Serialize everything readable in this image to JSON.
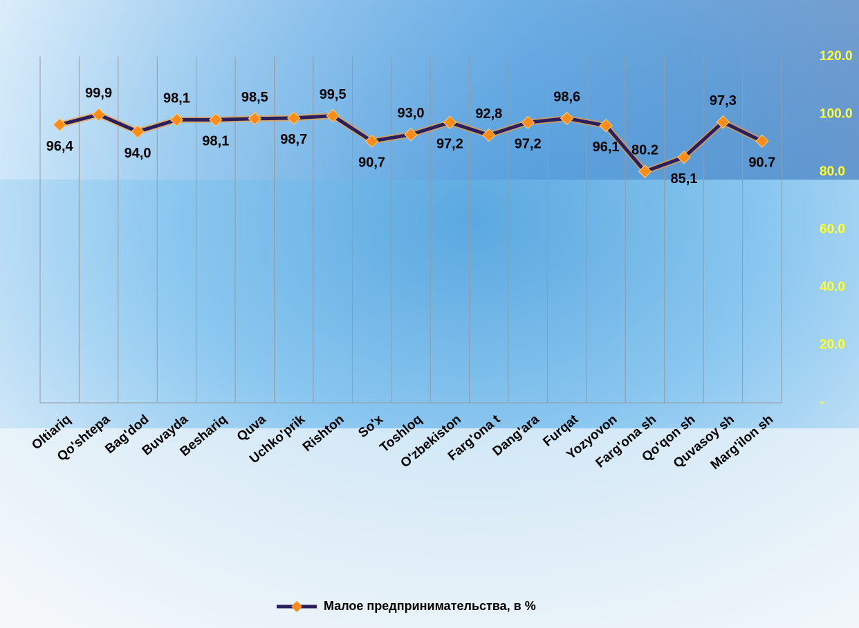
{
  "chart_data": {
    "type": "line",
    "categories": [
      "Oltiariq",
      "Qo'shtepa",
      "Bag'dod",
      "Buvayda",
      "Beshariq",
      "Quva",
      "Uchko'prik",
      "Rishton",
      "So'x",
      "Toshloq",
      "O'zbekiston",
      "Farg'ona t",
      "Dang'ara",
      "Furqat",
      "Yozyovon",
      "Farg'ona sh",
      "Qo'qon sh",
      "Quvasoy sh",
      "Marg'ilon sh"
    ],
    "series": [
      {
        "name": "Малое предпринимательства, в %",
        "color": "#2a1f5c",
        "values": [
          96.4,
          99.9,
          94.0,
          98.1,
          98.1,
          98.5,
          98.7,
          99.5,
          90.7,
          93.0,
          97.2,
          92.8,
          97.2,
          98.6,
          96.1,
          80.2,
          85.1,
          97.3,
          90.7
        ],
        "value_labels": [
          "96,4",
          "99,9",
          "94,0",
          "98,1",
          "98,1",
          "98,5",
          "98,7",
          "99,5",
          "90,7",
          "93,0",
          "97,2",
          "92,8",
          "97,2",
          "98,6",
          "96,1",
          "80.2",
          "85,1",
          "97,3",
          "90.7"
        ]
      }
    ],
    "ylim": [
      0,
      120
    ],
    "yticks": [
      {
        "value": 0,
        "label": "-"
      },
      {
        "value": 20,
        "label": "20.0"
      },
      {
        "value": 40,
        "label": "40.0"
      },
      {
        "value": 60,
        "label": "60.0"
      },
      {
        "value": 80,
        "label": "80.0"
      },
      {
        "value": 100,
        "label": "100.0"
      },
      {
        "value": 120,
        "label": "120.0"
      }
    ],
    "y_axis_side": "right",
    "marker_color": "#ff8c1a",
    "grid": "vertical"
  }
}
